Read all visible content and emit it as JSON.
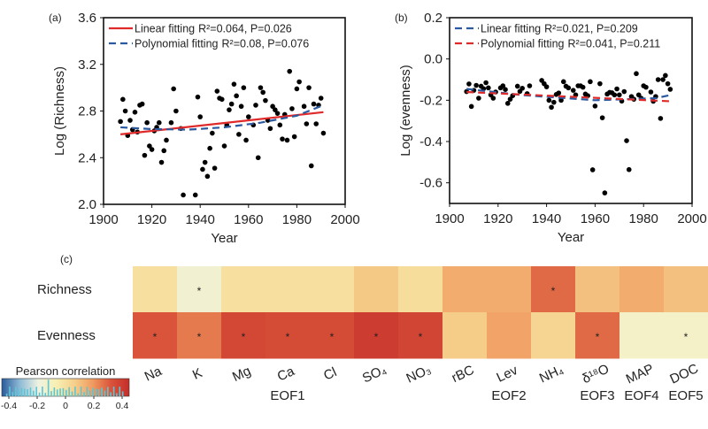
{
  "chart_data": [
    {
      "panel": "(a)",
      "type": "scatter",
      "xlabel": "Year",
      "ylabel": "Log (Richness)",
      "xlim": [
        1900,
        2000
      ],
      "ylim": [
        2.0,
        3.6
      ],
      "xticks": [
        "1900",
        "1920",
        "1940",
        "1960",
        "1980",
        "2000"
      ],
      "yticks": [
        "2.0",
        "2.4",
        "2.8",
        "3.2",
        "3.6"
      ],
      "points": [
        [
          1907,
          2.71
        ],
        [
          1908,
          2.9
        ],
        [
          1909,
          2.8
        ],
        [
          1910,
          2.59
        ],
        [
          1911,
          2.72
        ],
        [
          1912,
          2.64
        ],
        [
          1913,
          2.79
        ],
        [
          1914,
          2.62
        ],
        [
          1915,
          2.85
        ],
        [
          1916,
          2.86
        ],
        [
          1917,
          2.42
        ],
        [
          1918,
          2.7
        ],
        [
          1919,
          2.5
        ],
        [
          1920,
          2.47
        ],
        [
          1921,
          2.63
        ],
        [
          1922,
          2.66
        ],
        [
          1923,
          2.7
        ],
        [
          1924,
          2.36
        ],
        [
          1925,
          2.46
        ],
        [
          1926,
          2.55
        ],
        [
          1928,
          2.7
        ],
        [
          1929,
          2.99
        ],
        [
          1930,
          2.8
        ],
        [
          1932,
          2.65
        ],
        [
          1933,
          2.08
        ],
        [
          1938,
          2.08
        ],
        [
          1939,
          2.92
        ],
        [
          1940,
          2.75
        ],
        [
          1941,
          2.3
        ],
        [
          1942,
          2.36
        ],
        [
          1943,
          2.24
        ],
        [
          1944,
          2.48
        ],
        [
          1945,
          2.61
        ],
        [
          1946,
          2.31
        ],
        [
          1947,
          2.97
        ],
        [
          1948,
          2.91
        ],
        [
          1949,
          2.9
        ],
        [
          1950,
          2.5
        ],
        [
          1951,
          2.68
        ],
        [
          1952,
          2.81
        ],
        [
          1953,
          2.86
        ],
        [
          1954,
          3.03
        ],
        [
          1955,
          2.93
        ],
        [
          1956,
          2.6
        ],
        [
          1957,
          2.84
        ],
        [
          1958,
          3.0
        ],
        [
          1959,
          2.55
        ],
        [
          1960,
          2.75
        ],
        [
          1962,
          2.68
        ],
        [
          1963,
          2.85
        ],
        [
          1964,
          2.4
        ],
        [
          1965,
          3.0
        ],
        [
          1966,
          2.96
        ],
        [
          1967,
          2.89
        ],
        [
          1968,
          2.72
        ],
        [
          1969,
          2.65
        ],
        [
          1970,
          2.84
        ],
        [
          1971,
          2.81
        ],
        [
          1972,
          2.78
        ],
        [
          1973,
          2.68
        ],
        [
          1974,
          2.56
        ],
        [
          1975,
          2.77
        ],
        [
          1976,
          2.55
        ],
        [
          1977,
          3.14
        ],
        [
          1978,
          2.82
        ],
        [
          1979,
          2.58
        ],
        [
          1980,
          2.99
        ],
        [
          1981,
          3.05
        ],
        [
          1983,
          2.84
        ],
        [
          1984,
          2.69
        ],
        [
          1985,
          3.0
        ],
        [
          1986,
          2.33
        ],
        [
          1987,
          2.86
        ],
        [
          1988,
          2.69
        ],
        [
          1989,
          2.85
        ],
        [
          1990,
          2.91
        ],
        [
          1991,
          2.61
        ]
      ],
      "fits": [
        {
          "name": "Linear fitting",
          "stats": "R²=0.064, P=0.026",
          "color": "#e02a2a",
          "dash": false,
          "x": [
            1907,
            1991
          ],
          "y": [
            2.6,
            2.79
          ]
        },
        {
          "name": "Polynomial fitting",
          "stats": "R²=0.08, P=0.076",
          "color": "#2c5aa0",
          "dash": true,
          "x": [
            1907,
            1920,
            1935,
            1950,
            1965,
            1980,
            1991
          ],
          "y": [
            2.66,
            2.645,
            2.64,
            2.66,
            2.7,
            2.76,
            2.85
          ]
        }
      ]
    },
    {
      "panel": "(b)",
      "type": "scatter",
      "xlabel": "Year",
      "ylabel": "Log (evenness)",
      "xlim": [
        1900,
        2000
      ],
      "ylim": [
        -0.7,
        0.2
      ],
      "xticks": [
        "1900",
        "1920",
        "1940",
        "1960",
        "1980",
        "2000"
      ],
      "yticks": [
        "-0.6",
        "-0.4",
        "-0.2",
        "0.0",
        "0.2"
      ],
      "points": [
        [
          1907,
          -0.158
        ],
        [
          1908,
          -0.121
        ],
        [
          1909,
          -0.23
        ],
        [
          1910,
          -0.152
        ],
        [
          1911,
          -0.128
        ],
        [
          1912,
          -0.19
        ],
        [
          1913,
          -0.132
        ],
        [
          1914,
          -0.144
        ],
        [
          1915,
          -0.115
        ],
        [
          1916,
          -0.14
        ],
        [
          1917,
          -0.174
        ],
        [
          1918,
          -0.19
        ],
        [
          1919,
          -0.16
        ],
        [
          1921,
          -0.14
        ],
        [
          1922,
          -0.13
        ],
        [
          1923,
          -0.148
        ],
        [
          1924,
          -0.215
        ],
        [
          1925,
          -0.195
        ],
        [
          1926,
          -0.178
        ],
        [
          1928,
          -0.132
        ],
        [
          1929,
          -0.157
        ],
        [
          1930,
          -0.142
        ],
        [
          1932,
          -0.168
        ],
        [
          1933,
          -0.13
        ],
        [
          1938,
          -0.104
        ],
        [
          1939,
          -0.12
        ],
        [
          1940,
          -0.135
        ],
        [
          1941,
          -0.2
        ],
        [
          1942,
          -0.234
        ],
        [
          1943,
          -0.21
        ],
        [
          1944,
          -0.172
        ],
        [
          1945,
          -0.165
        ],
        [
          1946,
          -0.2
        ],
        [
          1947,
          -0.11
        ],
        [
          1948,
          -0.132
        ],
        [
          1949,
          -0.14
        ],
        [
          1951,
          -0.152
        ],
        [
          1952,
          -0.174
        ],
        [
          1953,
          -0.13
        ],
        [
          1954,
          -0.13
        ],
        [
          1955,
          -0.137
        ],
        [
          1956,
          -0.17
        ],
        [
          1957,
          -0.178
        ],
        [
          1958,
          -0.11
        ],
        [
          1959,
          -0.537
        ],
        [
          1960,
          -0.228
        ],
        [
          1962,
          -0.12
        ],
        [
          1963,
          -0.285
        ],
        [
          1964,
          -0.649
        ],
        [
          1965,
          -0.17
        ],
        [
          1966,
          -0.162
        ],
        [
          1967,
          -0.164
        ],
        [
          1968,
          -0.174
        ],
        [
          1969,
          -0.145
        ],
        [
          1970,
          -0.174
        ],
        [
          1971,
          -0.204
        ],
        [
          1972,
          -0.158
        ],
        [
          1973,
          -0.396
        ],
        [
          1974,
          -0.536
        ],
        [
          1975,
          -0.182
        ],
        [
          1976,
          -0.195
        ],
        [
          1977,
          -0.071
        ],
        [
          1978,
          -0.174
        ],
        [
          1979,
          -0.19
        ],
        [
          1980,
          -0.13
        ],
        [
          1981,
          -0.137
        ],
        [
          1983,
          -0.16
        ],
        [
          1984,
          -0.205
        ],
        [
          1985,
          -0.182
        ],
        [
          1986,
          -0.1
        ],
        [
          1987,
          -0.288
        ],
        [
          1988,
          -0.1
        ],
        [
          1989,
          -0.08
        ],
        [
          1990,
          -0.12
        ],
        [
          1991,
          -0.147
        ]
      ],
      "fits": [
        {
          "name": "Linear fitting",
          "stats": "R²=0.021, P=0.209",
          "color": "#2c5aa0",
          "dash": true,
          "x": [
            1907,
            1930,
            1960,
            1985,
            1991
          ],
          "y": [
            -0.145,
            -0.175,
            -0.2,
            -0.19,
            -0.175
          ]
        },
        {
          "name": "Polynomial fitting",
          "stats": "R²=0.041, P=0.211",
          "color": "#e02a2a",
          "dash": true,
          "x": [
            1907,
            1991
          ],
          "y": [
            -0.16,
            -0.205
          ]
        }
      ]
    },
    {
      "panel": "(c)",
      "type": "heatmap",
      "rows": [
        "Richness",
        "Evenness"
      ],
      "columns": [
        "Na",
        "K",
        "Mg",
        "Ca",
        "Cl",
        "SO₄",
        "NO₃",
        "rBC",
        "Lev",
        "NH₄",
        "δ¹⁸O",
        "MAP",
        "DOC"
      ],
      "values": [
        [
          0.0,
          -0.15,
          0.0,
          0.0,
          0.0,
          0.08,
          0.01,
          0.15,
          0.15,
          0.28,
          0.1,
          0.15,
          0.1
        ],
        [
          0.32,
          0.25,
          0.36,
          0.35,
          0.35,
          0.4,
          0.37,
          0.07,
          0.17,
          0.04,
          0.28,
          -0.12,
          -0.12
        ]
      ],
      "significant": [
        [
          false,
          true,
          false,
          false,
          false,
          false,
          false,
          false,
          false,
          true,
          false,
          false,
          false
        ],
        [
          true,
          true,
          true,
          true,
          true,
          true,
          true,
          false,
          false,
          false,
          true,
          false,
          true
        ]
      ],
      "significance_mark": "*",
      "groups": [
        {
          "label": "EOF1",
          "from": "Na",
          "to": "NO₃"
        },
        {
          "label": "EOF2",
          "from": "rBC",
          "to": "NH₄"
        },
        {
          "label": "EOF3",
          "from": "δ¹⁸O",
          "to": "δ¹⁸O"
        },
        {
          "label": "EOF4",
          "from": "MAP",
          "to": "MAP"
        },
        {
          "label": "EOF5",
          "from": "DOC",
          "to": "DOC"
        }
      ],
      "colorbar": {
        "title": "Pearson correlation",
        "range": [
          -0.45,
          0.45
        ],
        "ticks": [
          "-0.4",
          "-0.2",
          "0",
          "0.2",
          "0.4"
        ],
        "colors": [
          "#2a5b9b",
          "#8fbbd6",
          "#eef2e2",
          "#f8efb2",
          "#f5cf8b",
          "#f09a60",
          "#d9533a",
          "#c42d2a"
        ]
      }
    }
  ]
}
